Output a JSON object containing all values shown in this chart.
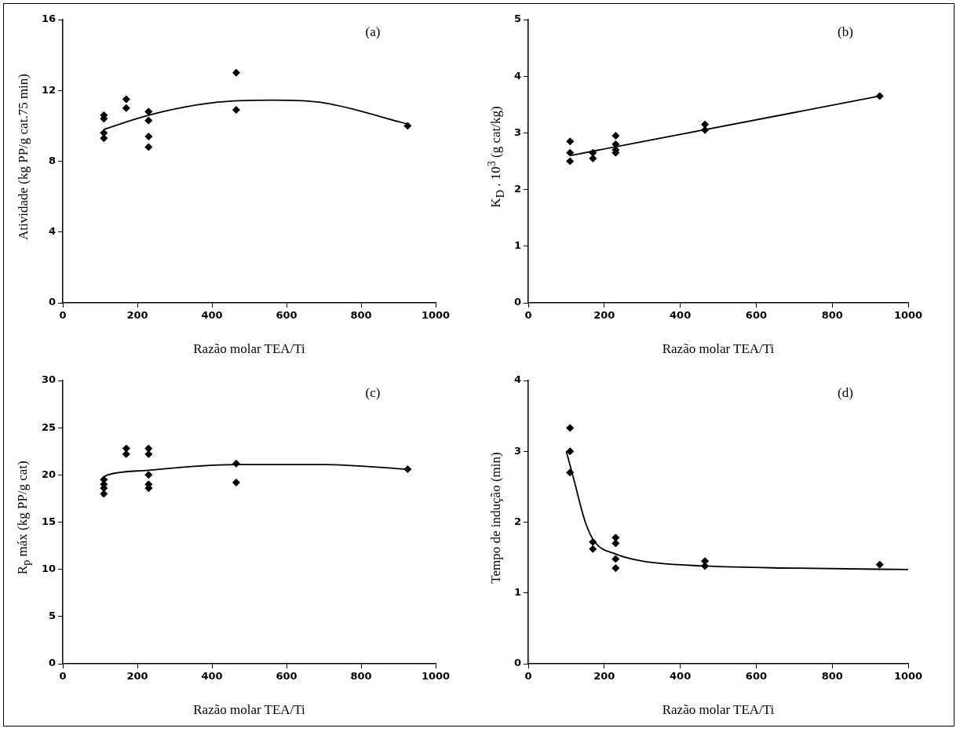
{
  "chart_data": [
    {
      "type": "scatter",
      "xlabel": "Razão molar TEA/Ti",
      "ylabel": "Atividade (kg PP/g cat.75 min)",
      "annotations": [
        "(a)"
      ],
      "xlim": [
        0,
        1000
      ],
      "xticks": [
        0,
        200,
        400,
        600,
        800,
        1000
      ],
      "ylim": [
        0,
        16
      ],
      "yticks": [
        0,
        4,
        8,
        12,
        16
      ],
      "grid": false,
      "legend": false,
      "series": [
        {
          "color": "#000000",
          "marker": "diamond",
          "x": [
            110,
            110,
            110,
            110,
            170,
            170,
            230,
            230,
            230,
            230,
            465,
            465,
            925
          ],
          "values": [
            10.6,
            10.4,
            9.6,
            9.3,
            11.5,
            11.0,
            10.8,
            10.3,
            9.4,
            8.8,
            13.0,
            10.9,
            10.0
          ]
        },
        {
          "type": "line",
          "color": "#000000",
          "x": [
            110,
            230,
            400,
            560,
            700,
            925
          ],
          "values": [
            9.8,
            10.6,
            11.3,
            11.45,
            11.3,
            10.1
          ]
        }
      ]
    },
    {
      "type": "scatter",
      "xlabel": "Razão molar TEA/Ti",
      "ylabel": "K$_{D}$ . 10$^{3}$ (g cat/kg)",
      "annotations": [
        "(b)"
      ],
      "xlim": [
        0,
        1000
      ],
      "xticks": [
        0,
        200,
        400,
        600,
        800,
        1000
      ],
      "ylim": [
        0,
        5
      ],
      "yticks": [
        0,
        1,
        2,
        3,
        4,
        5
      ],
      "grid": false,
      "legend": false,
      "series": [
        {
          "color": "#000000",
          "marker": "diamond",
          "x": [
            110,
            110,
            110,
            170,
            170,
            230,
            230,
            230,
            230,
            465,
            465,
            925
          ],
          "values": [
            2.85,
            2.65,
            2.5,
            2.65,
            2.55,
            2.95,
            2.8,
            2.7,
            2.65,
            3.15,
            3.05,
            3.65
          ]
        },
        {
          "type": "line",
          "color": "#000000",
          "x": [
            110,
            925
          ],
          "values": [
            2.6,
            3.65
          ]
        }
      ]
    },
    {
      "type": "scatter",
      "xlabel": "Razão molar TEA/Ti",
      "ylabel": "R$_{p}$ máx (kg PP/g cat)",
      "annotations": [
        "(c)"
      ],
      "xlim": [
        0,
        1000
      ],
      "xticks": [
        0,
        200,
        400,
        600,
        800,
        1000
      ],
      "ylim": [
        0,
        30
      ],
      "yticks": [
        0,
        5,
        10,
        15,
        20,
        25,
        30
      ],
      "grid": false,
      "legend": false,
      "series": [
        {
          "color": "#000000",
          "marker": "diamond",
          "x": [
            110,
            110,
            110,
            110,
            170,
            170,
            230,
            230,
            230,
            230,
            230,
            465,
            465,
            925
          ],
          "values": [
            19.5,
            19.0,
            18.6,
            18.0,
            22.8,
            22.2,
            22.8,
            22.2,
            20.0,
            19.0,
            18.6,
            21.2,
            19.2,
            20.6
          ]
        },
        {
          "type": "line",
          "color": "#000000",
          "x": [
            110,
            120,
            230,
            465,
            700,
            925
          ],
          "values": [
            19.8,
            20.0,
            20.5,
            21.1,
            21.1,
            20.6
          ]
        }
      ]
    },
    {
      "type": "scatter",
      "xlabel": "Razão molar TEA/Ti",
      "ylabel": "Tempo de indução (min)",
      "annotations": [
        "(d)"
      ],
      "xlim": [
        0,
        1000
      ],
      "xticks": [
        0,
        200,
        400,
        600,
        800,
        1000
      ],
      "ylim": [
        0,
        4
      ],
      "yticks": [
        0,
        1,
        2,
        3,
        4
      ],
      "grid": false,
      "legend": false,
      "series": [
        {
          "color": "#000000",
          "marker": "diamond",
          "x": [
            110,
            110,
            110,
            170,
            170,
            230,
            230,
            230,
            230,
            465,
            465,
            925
          ],
          "values": [
            3.33,
            3.0,
            2.7,
            1.72,
            1.62,
            1.78,
            1.7,
            1.48,
            1.35,
            1.45,
            1.38,
            1.4
          ]
        },
        {
          "type": "line",
          "color": "#000000",
          "x": [
            100,
            120,
            150,
            175,
            230,
            300,
            465,
            700,
            1000
          ],
          "values": [
            3.0,
            2.6,
            2.0,
            1.72,
            1.55,
            1.45,
            1.38,
            1.35,
            1.33
          ]
        }
      ]
    }
  ]
}
